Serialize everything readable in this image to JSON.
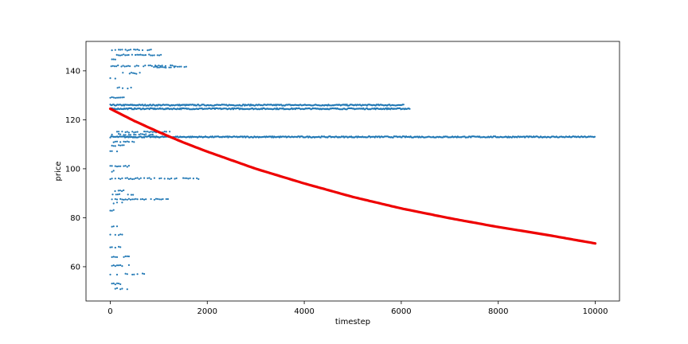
{
  "chart_data": {
    "type": "scatter",
    "xlabel": "timestep",
    "ylabel": "price",
    "xlim": [
      -500,
      10500
    ],
    "ylim": [
      46,
      152
    ],
    "x_ticks": [
      0,
      2000,
      4000,
      6000,
      8000,
      10000
    ],
    "y_ticks": [
      60,
      80,
      100,
      120,
      140
    ],
    "grid": false,
    "legend": "none",
    "series": [
      {
        "mark": "scatter",
        "color": "#1f77b4",
        "bands": [
          {
            "y": 148.5,
            "x": [
              0,
              880
            ]
          },
          {
            "y": 146.5,
            "x": [
              100,
              1050
            ]
          },
          {
            "y": 144.5,
            "x": [
              0,
              300
            ]
          },
          {
            "y": 142.0,
            "x": [
              20,
              1350
            ]
          },
          {
            "y": 141.5,
            "x": [
              900,
              1650
            ]
          },
          {
            "y": 139.0,
            "x": [
              120,
              650
            ]
          },
          {
            "y": 137.0,
            "x": [
              0,
              200
            ]
          },
          {
            "y": 133.0,
            "x": [
              150,
              450
            ]
          },
          {
            "y": 129.0,
            "x": [
              0,
              300
            ]
          },
          {
            "y": 126.0,
            "x": [
              0,
              6050
            ]
          },
          {
            "y": 124.5,
            "x": [
              0,
              6180
            ]
          },
          {
            "y": 115.0,
            "x": [
              0,
              1250
            ]
          },
          {
            "y": 114.0,
            "x": [
              0,
              900
            ]
          },
          {
            "y": 113.0,
            "x": [
              0,
              10000
            ]
          },
          {
            "y": 111.0,
            "x": [
              0,
              500
            ]
          },
          {
            "y": 109.5,
            "x": [
              0,
              300
            ]
          },
          {
            "y": 107.0,
            "x": [
              0,
              200
            ]
          },
          {
            "y": 101.0,
            "x": [
              0,
              400
            ]
          },
          {
            "y": 99.0,
            "x": [
              0,
              150
            ]
          },
          {
            "y": 96.0,
            "x": [
              0,
              1980
            ]
          },
          {
            "y": 91.0,
            "x": [
              100,
              300
            ]
          },
          {
            "y": 89.5,
            "x": [
              50,
              500
            ]
          },
          {
            "y": 87.5,
            "x": [
              0,
              1200
            ]
          },
          {
            "y": 86.0,
            "x": [
              0,
              300
            ]
          },
          {
            "y": 83.0,
            "x": [
              0,
              100
            ]
          },
          {
            "y": 76.5,
            "x": [
              0,
              200
            ]
          },
          {
            "y": 73.0,
            "x": [
              0,
              250
            ]
          },
          {
            "y": 68.0,
            "x": [
              0,
              250
            ]
          },
          {
            "y": 64.0,
            "x": [
              0,
              450
            ]
          },
          {
            "y": 60.5,
            "x": [
              0,
              400
            ]
          },
          {
            "y": 57.0,
            "x": [
              0,
              700
            ]
          },
          {
            "y": 53.0,
            "x": [
              0,
              300
            ]
          },
          {
            "y": 51.0,
            "x": [
              0,
              450
            ]
          }
        ]
      },
      {
        "mark": "trend",
        "color": "#ee0000",
        "points": [
          [
            0,
            124.5
          ],
          [
            500,
            119.5
          ],
          [
            1000,
            115.0
          ],
          [
            1500,
            110.8
          ],
          [
            2000,
            107.0
          ],
          [
            3000,
            100.0
          ],
          [
            4000,
            94.0
          ],
          [
            5000,
            88.5
          ],
          [
            6000,
            83.8
          ],
          [
            7000,
            79.8
          ],
          [
            8000,
            76.2
          ],
          [
            9000,
            73.0
          ],
          [
            10000,
            69.5
          ]
        ]
      }
    ]
  }
}
